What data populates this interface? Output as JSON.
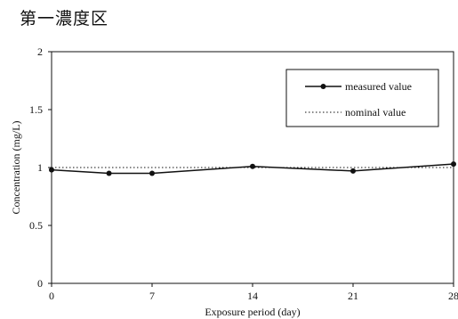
{
  "title": "第一濃度区",
  "chart_data": {
    "type": "line",
    "title": "第一濃度区",
    "xlabel": "Exposure period (day)",
    "ylabel": "Concentration (mg/L)",
    "xlim": [
      0,
      28
    ],
    "ylim": [
      0,
      2
    ],
    "x_ticks": [
      0,
      7,
      14,
      21,
      28
    ],
    "x_tick_labels": [
      "0",
      "7",
      "14",
      "21",
      "28"
    ],
    "y_ticks": [
      0,
      0.5,
      1,
      1.5,
      2
    ],
    "y_tick_labels": [
      "0",
      "0.5",
      "1",
      "1.5",
      "2"
    ],
    "grid": false,
    "legend_position": "top-right",
    "series": [
      {
        "name": "measured value",
        "style": "solid-with-markers",
        "color": "#111111",
        "x": [
          0,
          4,
          7,
          14,
          21,
          28
        ],
        "y": [
          0.98,
          0.95,
          0.95,
          1.01,
          0.97,
          1.03
        ]
      },
      {
        "name": "nominal value",
        "style": "dotted",
        "color": "#111111",
        "x": [
          0,
          28
        ],
        "y": [
          1.0,
          1.0
        ]
      }
    ]
  }
}
